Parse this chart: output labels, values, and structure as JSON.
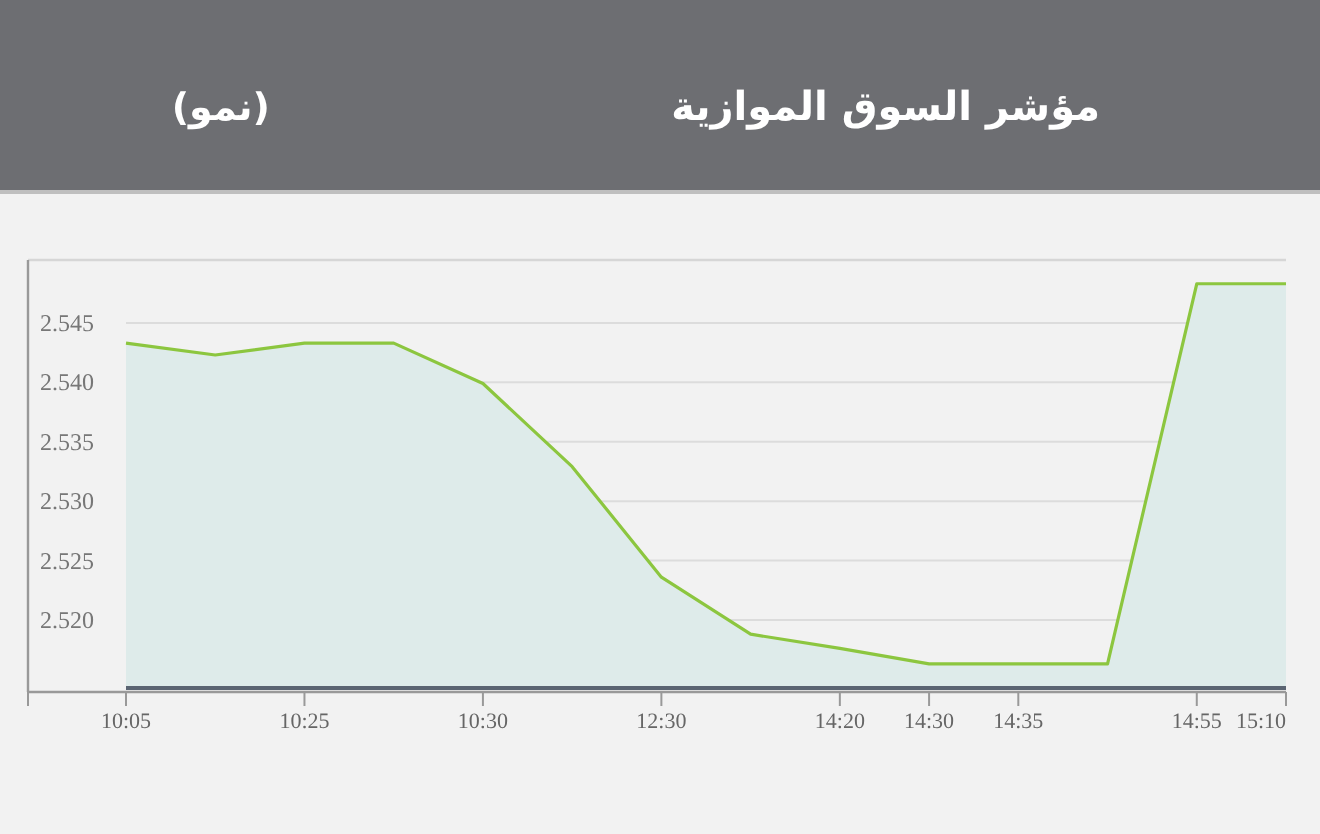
{
  "chart_data": {
    "type": "area",
    "title": "مؤشر السوق الموازية",
    "subtitle": "(نمو)",
    "categories": [
      "10:05",
      null,
      "10:25",
      null,
      "10:30",
      null,
      "12:30",
      null,
      "14:20",
      "14:30",
      "14:35",
      null,
      "14:55",
      "15:10"
    ],
    "series": [
      {
        "color": "#8cc63f",
        "values": [
          2.5433,
          2.5423,
          2.5433,
          2.5433,
          2.5399,
          2.5329,
          2.5236,
          2.5188,
          2.5176,
          2.5163,
          2.5163,
          2.5163,
          2.5483,
          2.5483
        ]
      }
    ],
    "ylim": [
      2.5141,
      2.5503
    ],
    "yticks": [
      {
        "value": 2.52,
        "label": "2.520"
      },
      {
        "value": 2.525,
        "label": "2.525"
      },
      {
        "value": 2.53,
        "label": "2.530"
      },
      {
        "value": 2.535,
        "label": "2.535"
      },
      {
        "value": 2.54,
        "label": "2.540"
      },
      {
        "value": 2.545,
        "label": "2.545"
      }
    ],
    "grid": "y",
    "marker": "none",
    "line_style": "solid"
  }
}
